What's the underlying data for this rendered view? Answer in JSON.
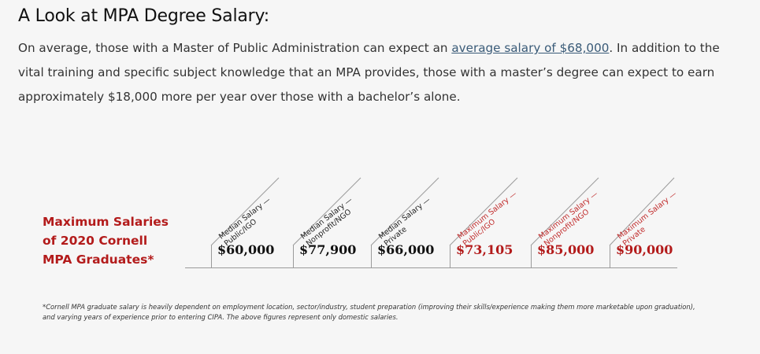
{
  "title": "A Look at MPA Degree Salary:",
  "intro": {
    "before_link": "On average, those with a Master of Public Administration can expect an ",
    "link_text": "average salary of $68,000",
    "after_link": ". In addition to the vital training and specific subject knowledge that an MPA provides, those with a master’s degree can expect to earn approximately $18,000 more per year over those with a bachelor’s alone."
  },
  "infographic": {
    "heading_line1": "Maximum Salaries",
    "heading_line2": "of 2020 Cornell",
    "heading_line3": "MPA Graduates*",
    "columns": [
      {
        "label_line1": "Median Salary —",
        "label_line2": "Public/IGO",
        "value": "$60,000"
      },
      {
        "label_line1": "Median Salary —",
        "label_line2": "Nonprofit/NGO",
        "value": "$77,900"
      },
      {
        "label_line1": "Median Salary —",
        "label_line2": "Private",
        "value": "$66,000"
      },
      {
        "label_line1": "Maximum Salary —",
        "label_line2": "Public/IGO",
        "value": "$73,105"
      },
      {
        "label_line1": "Maximum Salary —",
        "label_line2": "Nonprofit/NGO",
        "value": "$85,000"
      },
      {
        "label_line1": "Maximum Salary —",
        "label_line2": "Private",
        "value": "$90,000"
      }
    ]
  },
  "footnote": "*Cornell MPA graduate salary is heavily dependent on employment location, sector/industry, student preparation (improving their skills/experience making them more marketable upon graduation), and varying years of experience prior to entering CIPA. The above figures represent only domestic salaries.",
  "colors": {
    "accent_red": "#b31b1b",
    "link": "#3a5b78"
  }
}
